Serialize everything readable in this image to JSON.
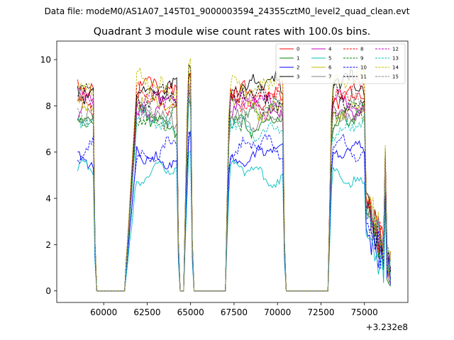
{
  "figure": {
    "suptitle": "Data file: modeM0/AS1A07_145T01_9000003594_24355cztM0_level2_quad_clean.evt",
    "offset_label": "+3.232e8"
  },
  "chart_data": {
    "type": "line",
    "title": "Quadrant 3 module wise count rates with 100.0s bins.",
    "xlabel": "",
    "ylabel": "",
    "x_offset": 323200000,
    "xlim": [
      57300,
      77500
    ],
    "ylim": [
      -0.5,
      10.8
    ],
    "x_ticks": [
      60000,
      62500,
      65000,
      67500,
      70000,
      72500,
      75000
    ],
    "x_tick_labels": [
      "60000",
      "62500",
      "65000",
      "67500",
      "70000",
      "72500",
      "75000"
    ],
    "y_ticks": [
      0,
      2,
      4,
      6,
      8,
      10
    ],
    "y_tick_labels": [
      "0",
      "2",
      "4",
      "6",
      "8",
      "10"
    ],
    "grid": false,
    "legend_position": "top-right",
    "bin_size_s": 100,
    "segments": [
      {
        "x0": 58500,
        "x1": 59400,
        "type": "on"
      },
      {
        "x0": 59400,
        "x1": 59600,
        "type": "fall"
      },
      {
        "x0": 59600,
        "x1": 61200,
        "type": "off"
      },
      {
        "x0": 61200,
        "x1": 61800,
        "type": "rise"
      },
      {
        "x0": 61800,
        "x1": 64200,
        "type": "on"
      },
      {
        "x0": 64200,
        "x1": 64400,
        "type": "fall"
      },
      {
        "x0": 64400,
        "x1": 64600,
        "type": "off"
      },
      {
        "x0": 64600,
        "x1": 64800,
        "type": "rise"
      },
      {
        "x0": 64800,
        "x1": 65000,
        "type": "on"
      },
      {
        "x0": 65000,
        "x1": 65200,
        "type": "fall"
      },
      {
        "x0": 65200,
        "x1": 67000,
        "type": "off"
      },
      {
        "x0": 67000,
        "x1": 67200,
        "type": "rise"
      },
      {
        "x0": 67200,
        "x1": 70300,
        "type": "on"
      },
      {
        "x0": 70300,
        "x1": 70500,
        "type": "fall"
      },
      {
        "x0": 70500,
        "x1": 72900,
        "type": "off"
      },
      {
        "x0": 72900,
        "x1": 73100,
        "type": "rise"
      },
      {
        "x0": 73100,
        "x1": 75000,
        "type": "on"
      },
      {
        "x0": 75000,
        "x1": 75300,
        "type": "dip"
      },
      {
        "x0": 75300,
        "x1": 76500,
        "type": "tail"
      }
    ],
    "series": [
      {
        "name": "0",
        "color": "#ff0000",
        "dash": "solid",
        "level": 8.6
      },
      {
        "name": "1",
        "color": "#008000",
        "dash": "solid",
        "level": 7.4
      },
      {
        "name": "2",
        "color": "#0000ff",
        "dash": "solid",
        "level": 5.9
      },
      {
        "name": "3",
        "color": "#000000",
        "dash": "solid",
        "level": 8.8
      },
      {
        "name": "4",
        "color": "#bf00bf",
        "dash": "solid",
        "level": 8.0
      },
      {
        "name": "5",
        "color": "#00bfbf",
        "dash": "solid",
        "level": 5.0
      },
      {
        "name": "6",
        "color": "#bfbf00",
        "dash": "solid",
        "level": 8.0
      },
      {
        "name": "7",
        "color": "#808080",
        "dash": "solid",
        "level": 7.6
      },
      {
        "name": "8",
        "color": "#ff0000",
        "dash": "dashed",
        "level": 8.4
      },
      {
        "name": "9",
        "color": "#008000",
        "dash": "dashed",
        "level": 7.6
      },
      {
        "name": "10",
        "color": "#0000ff",
        "dash": "dashed",
        "level": 6.1
      },
      {
        "name": "11",
        "color": "#000000",
        "dash": "dashed",
        "level": 8.3
      },
      {
        "name": "12",
        "color": "#bf00bf",
        "dash": "dashed",
        "level": 8.1
      },
      {
        "name": "13",
        "color": "#00bfbf",
        "dash": "dashed",
        "level": 7.2
      },
      {
        "name": "14",
        "color": "#bfbf00",
        "dash": "dashed",
        "level": 9.0
      },
      {
        "name": "15",
        "color": "#808080",
        "dash": "dashed",
        "level": 7.8
      }
    ]
  }
}
